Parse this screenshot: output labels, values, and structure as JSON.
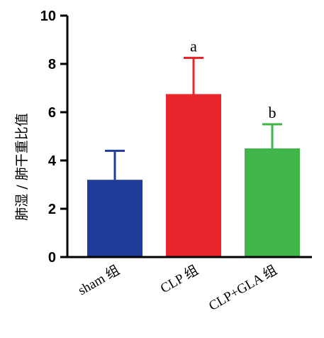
{
  "chart_data": {
    "type": "bar",
    "ylabel": "肺湿 / 肺干重比值",
    "ylim": [
      0,
      10
    ],
    "yticks": [
      0,
      2,
      4,
      6,
      8,
      10
    ],
    "grid": false,
    "categories": [
      "sham 组",
      "CLP 组",
      "CLP+GLA 组"
    ],
    "values": [
      3.2,
      6.75,
      4.5
    ],
    "error_upper": [
      4.4,
      8.25,
      5.5
    ],
    "colors": [
      "#1f3c98",
      "#e8262b",
      "#40b549"
    ],
    "annotations": [
      "",
      "a",
      "b"
    ]
  }
}
